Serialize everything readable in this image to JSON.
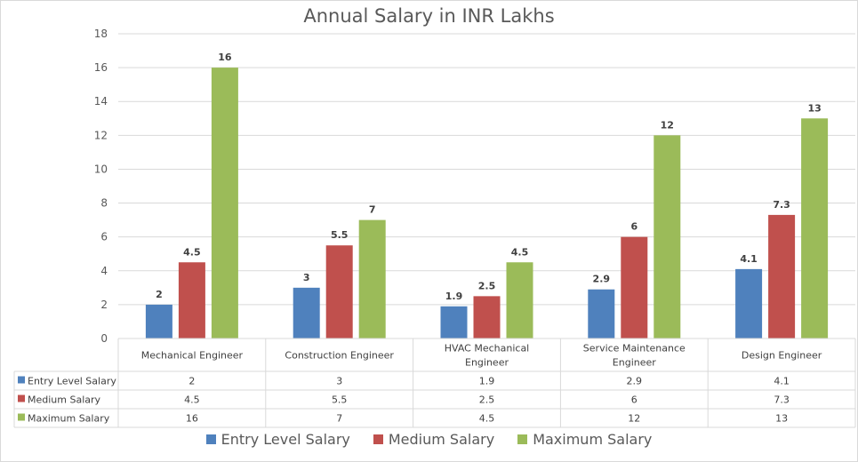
{
  "chart_data": {
    "type": "bar",
    "title": "Annual Salary in INR Lakhs",
    "xlabel": "",
    "ylabel": "",
    "ylim": [
      0,
      18
    ],
    "yticks": [
      0,
      2,
      4,
      6,
      8,
      10,
      12,
      14,
      16,
      18
    ],
    "grid": true,
    "legend_position": "bottom",
    "data_table": true,
    "categories": [
      "Mechanical Engineer",
      "Construction Engineer",
      "HVAC Mechanical Engineer",
      "Service Maintenance Engineer",
      "Design Engineer"
    ],
    "category_lines": [
      [
        "Mechanical Engineer"
      ],
      [
        "Construction Engineer"
      ],
      [
        "HVAC Mechanical",
        "Engineer"
      ],
      [
        "Service Maintenance",
        "Engineer"
      ],
      [
        "Design Engineer"
      ]
    ],
    "series": [
      {
        "name": "Entry Level Salary",
        "color": "#4f81bd",
        "values": [
          2,
          3,
          1.9,
          2.9,
          4.1
        ],
        "labels": [
          "2",
          "3",
          "1.9",
          "2.9",
          "4.1"
        ]
      },
      {
        "name": "Medium Salary",
        "color": "#c0504d",
        "values": [
          4.5,
          5.5,
          2.5,
          6,
          7.3
        ],
        "labels": [
          "4.5",
          "5.5",
          "2.5",
          "6",
          "7.3"
        ]
      },
      {
        "name": "Maximum Salary",
        "color": "#9bbb59",
        "values": [
          16,
          7,
          4.5,
          12,
          13
        ],
        "labels": [
          "16",
          "7",
          "4.5",
          "12",
          "13"
        ]
      }
    ]
  }
}
